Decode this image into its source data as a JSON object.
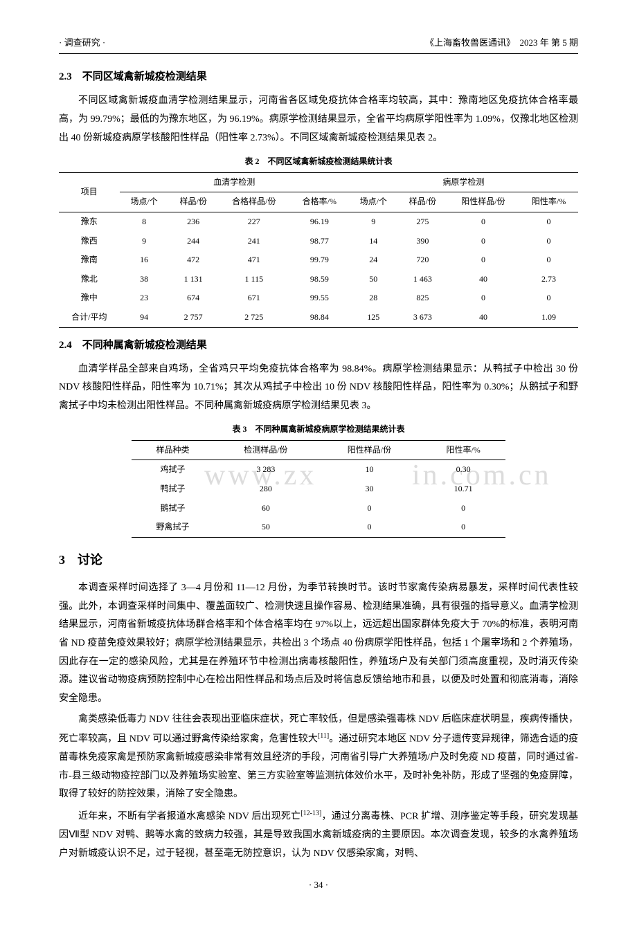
{
  "header": {
    "left": "· 调查研究 ·",
    "right": "《上海畜牧兽医通讯》　2023 年 第 5 期"
  },
  "section23": {
    "title": "2.3　不同区域禽新城疫检测结果",
    "para": "不同区域禽新城疫血清学检测结果显示，河南省各区域免疫抗体合格率均较高，其中：豫南地区免疫抗体合格率最高，为 99.79%；最低的为豫东地区，为 96.19%。病原学检测结果显示，全省平均病原学阳性率为 1.09%，仅豫北地区检测出 40 份新城疫病原学核酸阳性样品（阳性率 2.73%）。不同区域禽新城疫检测结果见表 2。"
  },
  "table2": {
    "caption": "表 2　不同区域禽新城疫检测结果统计表",
    "group1": "血清学检测",
    "group2": "病原学检测",
    "head": {
      "c0": "项目",
      "c1": "场点/个",
      "c2": "样品/份",
      "c3": "合格样品/份",
      "c4": "合格率/%",
      "c5": "场点/个",
      "c6": "样品/份",
      "c7": "阳性样品/份",
      "c8": "阳性率/%"
    },
    "rows": [
      {
        "c0": "豫东",
        "c1": "8",
        "c2": "236",
        "c3": "227",
        "c4": "96.19",
        "c5": "9",
        "c6": "275",
        "c7": "0",
        "c8": "0"
      },
      {
        "c0": "豫西",
        "c1": "9",
        "c2": "244",
        "c3": "241",
        "c4": "98.77",
        "c5": "14",
        "c6": "390",
        "c7": "0",
        "c8": "0"
      },
      {
        "c0": "豫南",
        "c1": "16",
        "c2": "472",
        "c3": "471",
        "c4": "99.79",
        "c5": "24",
        "c6": "720",
        "c7": "0",
        "c8": "0"
      },
      {
        "c0": "豫北",
        "c1": "38",
        "c2": "1 131",
        "c3": "1 115",
        "c4": "98.59",
        "c5": "50",
        "c6": "1 463",
        "c7": "40",
        "c8": "2.73"
      },
      {
        "c0": "豫中",
        "c1": "23",
        "c2": "674",
        "c3": "671",
        "c4": "99.55",
        "c5": "28",
        "c6": "825",
        "c7": "0",
        "c8": "0"
      },
      {
        "c0": "合计/平均",
        "c1": "94",
        "c2": "2 757",
        "c3": "2 725",
        "c4": "98.84",
        "c5": "125",
        "c6": "3 673",
        "c7": "40",
        "c8": "1.09"
      }
    ]
  },
  "section24": {
    "title": "2.4　不同种属禽新城疫检测结果",
    "para": "血清学样品全部来自鸡场，全省鸡只平均免疫抗体合格率为 98.84%。病原学检测结果显示：从鸭拭子中检出 30 份 NDV 核酸阳性样品，阳性率为 10.71%；其次从鸡拭子中检出 10 份 NDV 核酸阳性样品，阳性率为 0.30%；从鹅拭子和野禽拭子中均未检测出阳性样品。不同种属禽新城疫病原学检测结果见表 3。"
  },
  "table3": {
    "caption": "表 3　不同种属禽新城疫病原学检测结果统计表",
    "head": {
      "c0": "样品种类",
      "c1": "检测样品/份",
      "c2": "阳性样品/份",
      "c3": "阳性率/%"
    },
    "rows": [
      {
        "c0": "鸡拭子",
        "c1": "3 283",
        "c2": "10",
        "c3": "0.30"
      },
      {
        "c0": "鸭拭子",
        "c1": "280",
        "c2": "30",
        "c3": "10.71"
      },
      {
        "c0": "鹅拭子",
        "c1": "60",
        "c2": "0",
        "c3": "0"
      },
      {
        "c0": "野禽拭子",
        "c1": "50",
        "c2": "0",
        "c3": "0"
      }
    ]
  },
  "section3": {
    "title": "3　讨论",
    "p1": "本调查采样时间选择了 3—4 月份和 11—12 月份，为季节转换时节。该时节家禽传染病易暴发，采样时间代表性较强。此外，本调查采样时间集中、覆盖面较广、检测快速且操作容易、检测结果准确，具有很强的指导意义。血清学检测结果显示，河南省新城疫抗体场群合格率和个体合格率均在 97%以上，远远超出国家群体免疫大于 70%的标准，表明河南省 ND 疫苗免疫效果较好；病原学检测结果显示，共检出 3 个场点 40 份病原学阳性样品，包括 1 个屠宰场和 2 个养殖场，因此存在一定的感染风险，尤其是在养殖环节中检测出病毒核酸阳性，养殖场户及有关部门须高度重视，及时消灭传染源。建议省动物疫病预防控制中心在检出阳性样品和场点后及时将信息反馈给地市和县，以便及时处置和彻底消毒，消除安全隐患。",
    "p2_pre": "禽类感染低毒力 NDV 往往会表现出亚临床症状，死亡率较低，但是感染强毒株 NDV 后临床症状明显，疾病传播快，死亡率较高，且 NDV 可以通过野禽传染给家禽，危害性较大",
    "p2_cite": "[11]",
    "p2_post": "。通过研究本地区 NDV 分子遗传变异规律，筛选合适的疫苗毒株免疫家禽是预防家禽新城疫感染非常有效且经济的手段，河南省引导广大养殖场/户及时免疫 ND 疫苗，同时通过省-市-县三级动物疫控部门以及养殖场实验室、第三方实验室等监测抗体效价水平，及时补免补防，形成了坚强的免疫屏障，取得了较好的防控效果，消除了安全隐患。",
    "p3_pre": "近年来，不断有学者报道水禽感染 NDV 后出现死亡",
    "p3_cite": "[12-13]",
    "p3_post": "，通过分离毒株、PCR 扩增、测序鉴定等手段，研究发现基因Ⅶ型 NDV 对鸭、鹅等水禽的致病力较强，其是导致我国水禽新城疫病的主要原因。本次调查发现，较多的水禽养殖场户对新城疫认识不足，过于轻视，甚至毫无防控意识，认为 NDV 仅感染家禽，对鸭、"
  },
  "pagenum": "· 34 ·",
  "watermark": {
    "w1": "www.zx",
    "w2": "in.com.cn"
  }
}
